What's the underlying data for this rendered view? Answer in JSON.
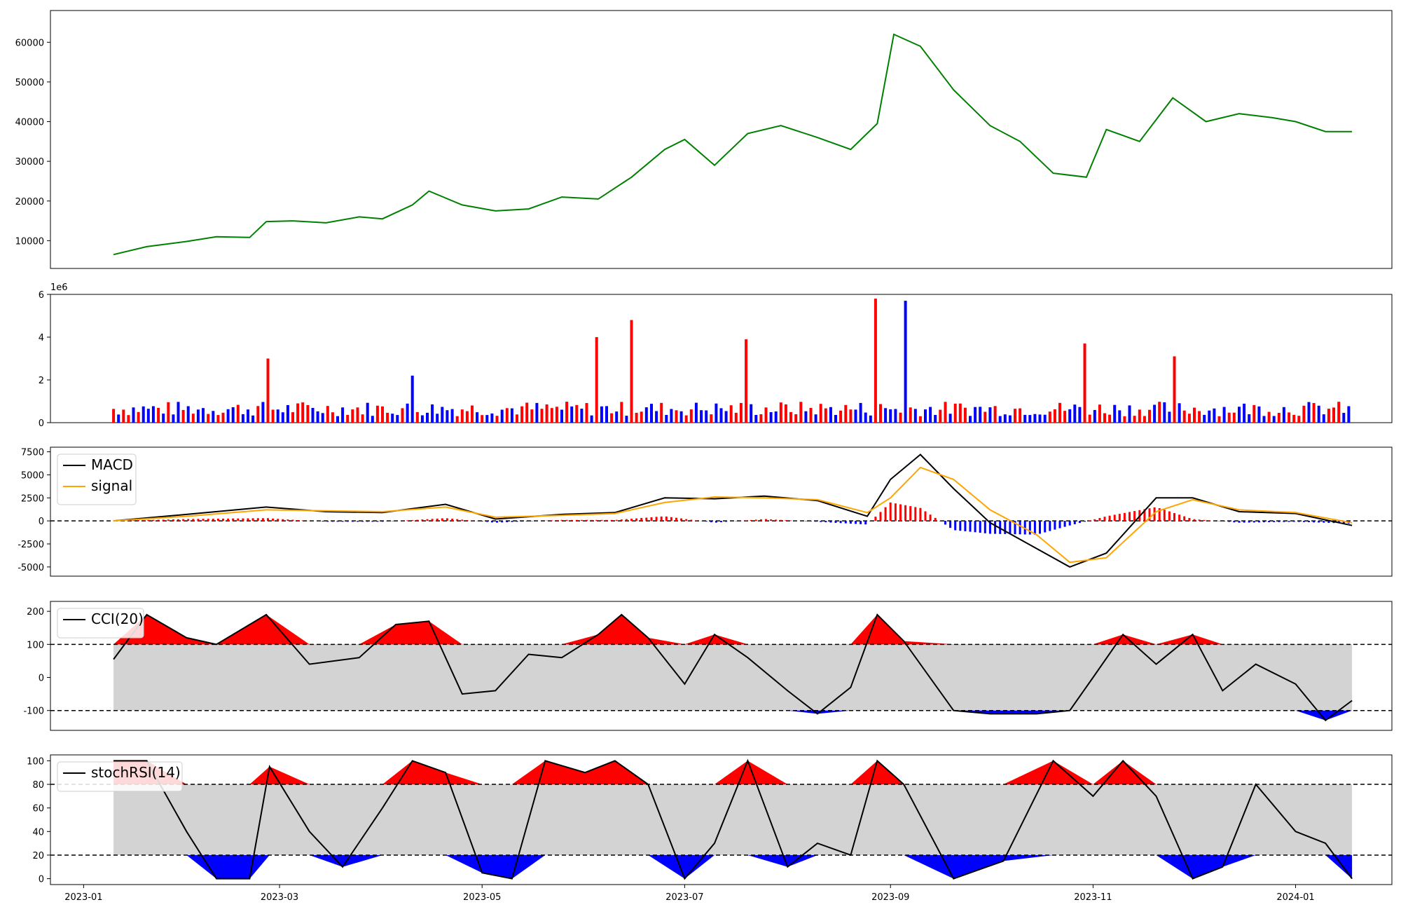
{
  "chart_data": [
    {
      "type": "line",
      "panel": "price",
      "title": "",
      "xlabel": "",
      "ylabel": "",
      "ylim": [
        3000,
        68000
      ],
      "yticks": [
        10000,
        20000,
        30000,
        40000,
        50000,
        60000
      ],
      "grid": false,
      "colors": {
        "price": "#008000"
      },
      "series": [
        {
          "x": [
            "2023-01-10",
            "2023-01-20",
            "2023-02-01",
            "2023-02-10",
            "2023-02-20",
            "2023-02-25",
            "2023-03-05",
            "2023-03-15",
            "2023-03-25",
            "2023-04-01",
            "2023-04-10",
            "2023-04-15",
            "2023-04-25",
            "2023-05-05",
            "2023-05-15",
            "2023-05-25",
            "2023-06-05",
            "2023-06-15",
            "2023-06-25",
            "2023-07-01",
            "2023-07-10",
            "2023-07-20",
            "2023-07-30",
            "2023-08-10",
            "2023-08-20",
            "2023-08-28",
            "2023-09-02",
            "2023-09-10",
            "2023-09-20",
            "2023-10-01",
            "2023-10-10",
            "2023-10-20",
            "2023-10-30",
            "2023-11-05",
            "2023-11-15",
            "2023-11-25",
            "2023-12-05",
            "2023-12-15",
            "2023-12-25",
            "2024-01-01",
            "2024-01-10",
            "2024-01-18"
          ],
          "values": [
            6500,
            8500,
            9800,
            11000,
            10800,
            14800,
            15000,
            14500,
            16000,
            15500,
            19000,
            22500,
            19000,
            17500,
            18000,
            21000,
            20500,
            26000,
            33000,
            35500,
            29000,
            37000,
            39000,
            36000,
            33000,
            39500,
            62000,
            59000,
            48000,
            39000,
            35000,
            27000,
            26000,
            38000,
            35000,
            46000,
            40000,
            42000,
            41000,
            40000,
            37500,
            37500
          ]
        }
      ]
    },
    {
      "type": "bar",
      "panel": "volume",
      "ylim": [
        0,
        6000000
      ],
      "yticks": [
        0,
        2,
        4,
        6
      ],
      "offset_label": "1e6",
      "colors": {
        "up": "#ff0000",
        "down": "#0000ff"
      },
      "x_range": [
        "2023-01-10",
        "2024-01-18"
      ],
      "peaks": [
        {
          "x": "2023-02-25",
          "value": 3000000
        },
        {
          "x": "2023-04-10",
          "value": 2200000
        },
        {
          "x": "2023-06-05",
          "value": 4000000
        },
        {
          "x": "2023-06-15",
          "value": 4800000
        },
        {
          "x": "2023-07-20",
          "value": 3900000
        },
        {
          "x": "2023-08-28",
          "value": 5800000
        },
        {
          "x": "2023-09-05",
          "value": 5700000
        },
        {
          "x": "2023-10-30",
          "value": 3700000
        },
        {
          "x": "2023-11-25",
          "value": 3100000
        }
      ]
    },
    {
      "type": "line",
      "panel": "macd",
      "ylim": [
        -6000,
        8000
      ],
      "yticks": [
        -5000,
        -2500,
        0,
        2500,
        5000,
        7500
      ],
      "legend": {
        "position": "upper left",
        "entries": [
          {
            "label": "MACD",
            "color": "#000000"
          },
          {
            "label": "signal",
            "color": "#ffa500"
          }
        ]
      },
      "series": [
        {
          "name": "MACD",
          "x": [
            "2023-01-10",
            "2023-02-01",
            "2023-02-25",
            "2023-03-15",
            "2023-04-01",
            "2023-04-20",
            "2023-05-05",
            "2023-05-25",
            "2023-06-10",
            "2023-06-25",
            "2023-07-10",
            "2023-07-25",
            "2023-08-10",
            "2023-08-25",
            "2023-09-01",
            "2023-09-10",
            "2023-09-20",
            "2023-10-01",
            "2023-10-15",
            "2023-10-25",
            "2023-11-05",
            "2023-11-20",
            "2023-12-01",
            "2023-12-15",
            "2024-01-01",
            "2024-01-18"
          ],
          "values": [
            0,
            700,
            1500,
            1000,
            900,
            1800,
            200,
            700,
            900,
            2500,
            2400,
            2700,
            2200,
            500,
            4500,
            7200,
            3500,
            -200,
            -3000,
            -5000,
            -3500,
            2500,
            2500,
            1000,
            800,
            -500
          ]
        },
        {
          "name": "signal",
          "x": [
            "2023-01-10",
            "2023-02-01",
            "2023-02-25",
            "2023-03-15",
            "2023-04-01",
            "2023-04-20",
            "2023-05-05",
            "2023-05-25",
            "2023-06-10",
            "2023-06-25",
            "2023-07-10",
            "2023-07-25",
            "2023-08-10",
            "2023-08-25",
            "2023-09-01",
            "2023-09-10",
            "2023-09-20",
            "2023-10-01",
            "2023-10-15",
            "2023-10-25",
            "2023-11-05",
            "2023-11-20",
            "2023-12-01",
            "2023-12-15",
            "2024-01-01",
            "2024-01-18"
          ],
          "values": [
            0,
            500,
            1200,
            1100,
            1000,
            1500,
            400,
            600,
            800,
            2000,
            2600,
            2500,
            2300,
            900,
            2500,
            5800,
            4500,
            1200,
            -1500,
            -4500,
            -4000,
            1000,
            2300,
            1200,
            900,
            -200
          ]
        }
      ],
      "histogram_colors": {
        "positive": "#ff0000",
        "negative": "#0000ff"
      },
      "zero_line": true
    },
    {
      "type": "line",
      "panel": "cci",
      "ylim": [
        -160,
        230
      ],
      "yticks": [
        -100,
        0,
        100,
        200
      ],
      "thresholds": [
        100,
        -100
      ],
      "legend": {
        "position": "upper left",
        "entries": [
          {
            "label": "CCI(20)",
            "color": "#000000"
          }
        ]
      },
      "series": [
        {
          "name": "CCI(20)",
          "x": [
            "2023-01-10",
            "2023-01-20",
            "2023-02-01",
            "2023-02-10",
            "2023-02-25",
            "2023-03-10",
            "2023-03-25",
            "2023-04-05",
            "2023-04-15",
            "2023-04-25",
            "2023-05-05",
            "2023-05-15",
            "2023-05-25",
            "2023-06-05",
            "2023-06-12",
            "2023-06-20",
            "2023-07-01",
            "2023-07-10",
            "2023-07-20",
            "2023-08-01",
            "2023-08-10",
            "2023-08-20",
            "2023-08-28",
            "2023-09-05",
            "2023-09-20",
            "2023-10-01",
            "2023-10-15",
            "2023-10-25",
            "2023-11-01",
            "2023-11-10",
            "2023-11-20",
            "2023-12-01",
            "2023-12-10",
            "2023-12-20",
            "2024-01-01",
            "2024-01-10",
            "2024-01-18"
          ],
          "values": [
            55,
            190,
            120,
            100,
            190,
            40,
            60,
            160,
            170,
            -50,
            -40,
            70,
            60,
            130,
            190,
            120,
            -20,
            130,
            60,
            -40,
            -110,
            -30,
            190,
            110,
            -100,
            -110,
            -110,
            -100,
            0,
            130,
            40,
            130,
            -40,
            40,
            -20,
            -130,
            -70
          ]
        }
      ]
    },
    {
      "type": "line",
      "panel": "stochrsi",
      "ylim": [
        -5,
        105
      ],
      "yticks": [
        0,
        20,
        40,
        60,
        80,
        100
      ],
      "thresholds": [
        80,
        20
      ],
      "legend": {
        "position": "upper left",
        "entries": [
          {
            "label": "stochRSI(14)",
            "color": "#000000"
          }
        ]
      },
      "xticks": [
        "2023-01",
        "2023-03",
        "2023-05",
        "2023-07",
        "2023-09",
        "2023-11",
        "2024-01"
      ],
      "series": [
        {
          "name": "stochRSI(14)",
          "x": [
            "2023-01-10",
            "2023-01-20",
            "2023-02-01",
            "2023-02-10",
            "2023-02-20",
            "2023-02-26",
            "2023-03-10",
            "2023-03-20",
            "2023-04-01",
            "2023-04-10",
            "2023-04-20",
            "2023-05-01",
            "2023-05-10",
            "2023-05-20",
            "2023-06-01",
            "2023-06-10",
            "2023-06-20",
            "2023-07-01",
            "2023-07-10",
            "2023-07-20",
            "2023-08-01",
            "2023-08-10",
            "2023-08-20",
            "2023-08-28",
            "2023-09-05",
            "2023-09-20",
            "2023-10-05",
            "2023-10-20",
            "2023-11-01",
            "2023-11-10",
            "2023-11-20",
            "2023-12-01",
            "2023-12-10",
            "2023-12-20",
            "2024-01-01",
            "2024-01-10",
            "2024-01-18"
          ],
          "values": [
            100,
            100,
            40,
            0,
            0,
            95,
            40,
            10,
            60,
            100,
            90,
            5,
            0,
            100,
            90,
            100,
            80,
            0,
            30,
            100,
            10,
            30,
            20,
            100,
            80,
            0,
            15,
            100,
            70,
            100,
            70,
            0,
            10,
            80,
            40,
            30,
            0
          ]
        }
      ]
    }
  ]
}
